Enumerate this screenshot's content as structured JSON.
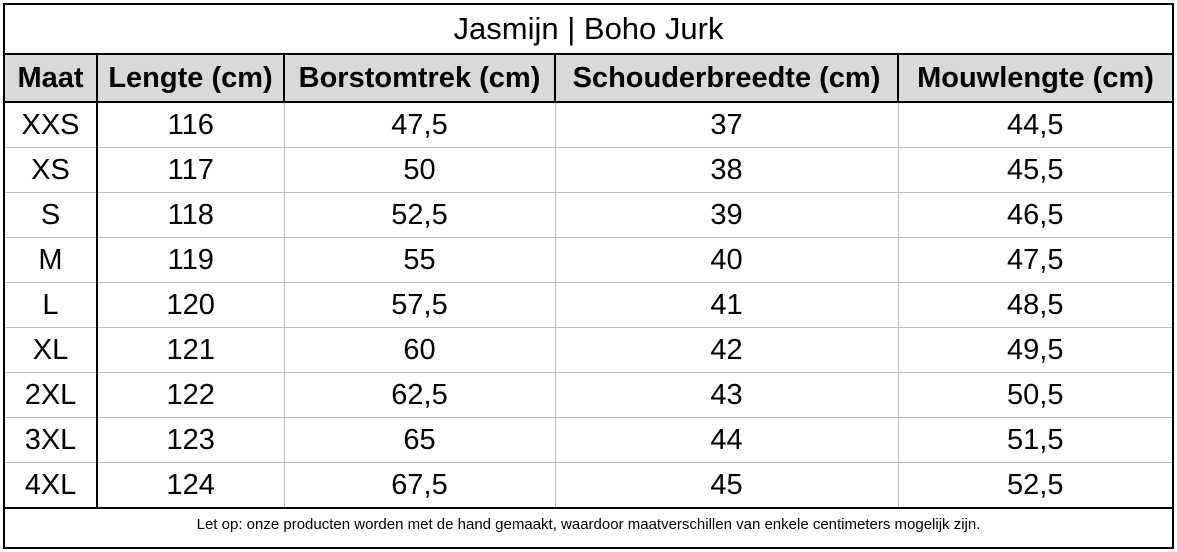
{
  "title": "Jasmijn | Boho Jurk",
  "colors": {
    "title": "#e07a96",
    "header_background": "#d9d9d9",
    "border": "#000000",
    "grid": "#bfbfbf"
  },
  "table": {
    "headers": [
      "Maat",
      "Lengte (cm)",
      "Borstomtrek (cm)",
      "Schouderbreedte (cm)",
      "Mouwlengte (cm)"
    ],
    "rows": [
      [
        "XXS",
        "116",
        "47,5",
        "37",
        "44,5"
      ],
      [
        "XS",
        "117",
        "50",
        "38",
        "45,5"
      ],
      [
        "S",
        "118",
        "52,5",
        "39",
        "46,5"
      ],
      [
        "M",
        "119",
        "55",
        "40",
        "47,5"
      ],
      [
        "L",
        "120",
        "57,5",
        "41",
        "48,5"
      ],
      [
        "XL",
        "121",
        "60",
        "42",
        "49,5"
      ],
      [
        "2XL",
        "122",
        "62,5",
        "43",
        "50,5"
      ],
      [
        "3XL",
        "123",
        "65",
        "44",
        "51,5"
      ],
      [
        "4XL",
        "124",
        "67,5",
        "45",
        "52,5"
      ]
    ]
  },
  "note": "Let op: onze producten worden met de hand gemaakt, waardoor maatverschillen van enkele centimeters mogelijk zijn."
}
